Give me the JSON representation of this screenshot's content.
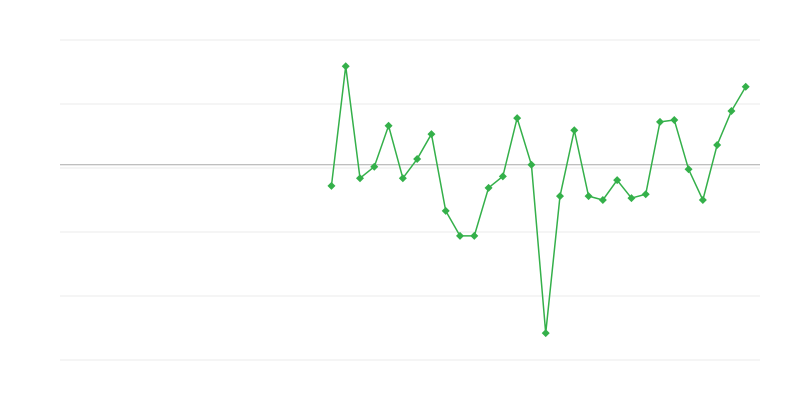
{
  "chart_data": {
    "type": "line",
    "title": "",
    "xlabel": "",
    "ylabel": "",
    "x_count": 50,
    "x": [
      19,
      20,
      21,
      22,
      23,
      24,
      25,
      26,
      27,
      28,
      29,
      30,
      31,
      32,
      33,
      34,
      35,
      36,
      37,
      38,
      39,
      40,
      41,
      42,
      43,
      44,
      45,
      46,
      47,
      48
    ],
    "values": [
      -0.28,
      1.59,
      -0.16,
      0.02,
      0.66,
      -0.16,
      0.14,
      0.53,
      -0.67,
      -1.06,
      -1.06,
      -0.31,
      -0.13,
      0.78,
      0.05,
      -2.58,
      -0.44,
      0.59,
      -0.44,
      -0.5,
      -0.19,
      -0.47,
      -0.41,
      0.72,
      0.75,
      -0.02,
      -0.5,
      0.36,
      0.89,
      1.27
    ],
    "ylim": [
      -3,
      2
    ],
    "gridlines": [
      2,
      1,
      0,
      -1,
      -2,
      -3
    ],
    "reference_line": 0.05,
    "grid": true,
    "marker": "diamond",
    "colors": {
      "series": "#34b04a",
      "grid": "#ebebeb",
      "reference": "#aaaaaa"
    }
  }
}
